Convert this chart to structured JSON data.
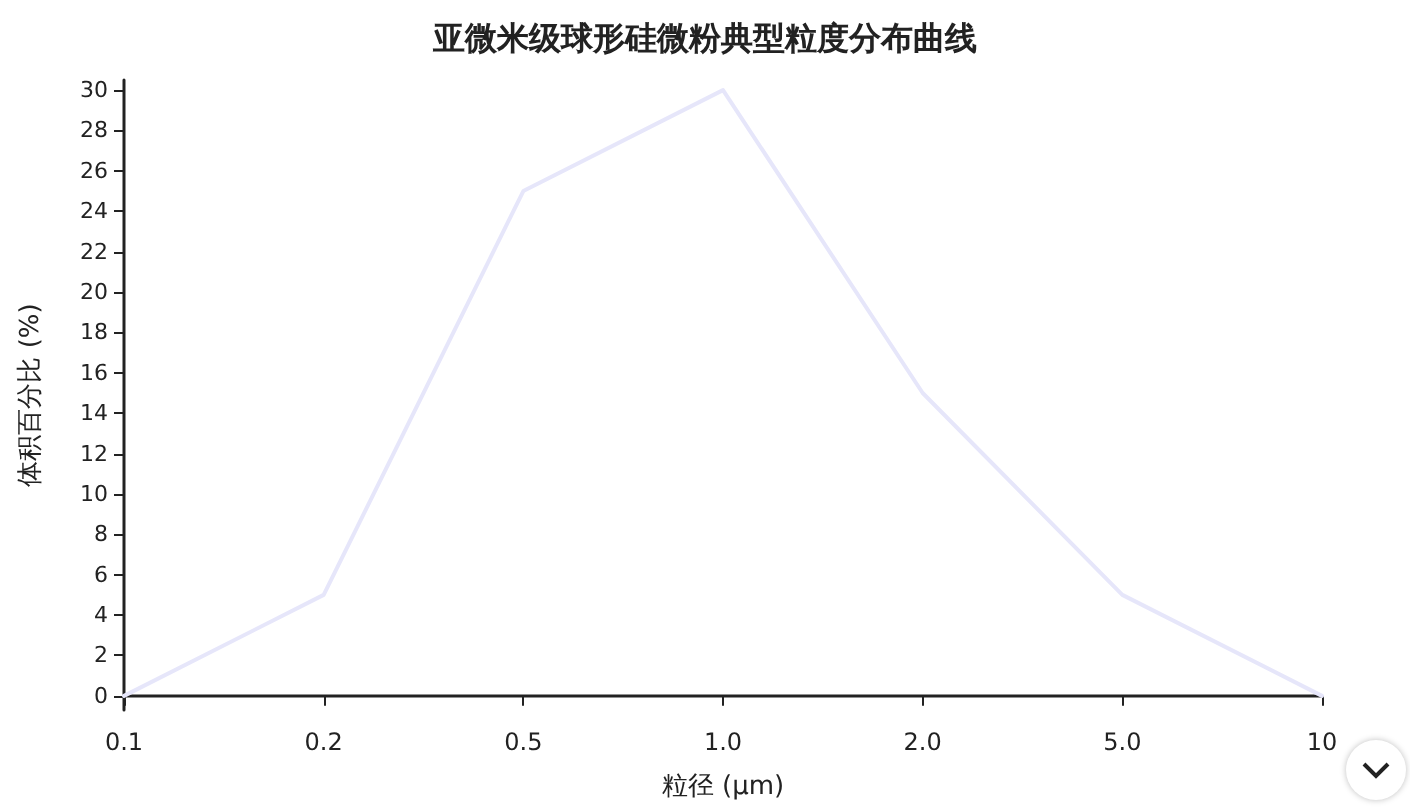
{
  "chart_data": {
    "type": "line",
    "title": "亚微米级球形硅微粉典型粒度分布曲线",
    "xlabel": "粒径 (μm)",
    "ylabel": "体积百分比 (%)",
    "categories": [
      "0.1",
      "0.2",
      "0.5",
      "1.0",
      "2.0",
      "5.0",
      "10"
    ],
    "values": [
      0,
      5,
      25,
      30,
      15,
      5,
      0
    ],
    "color": "#e6e6fa",
    "ylim": [
      -0.7,
      30.5
    ],
    "yticks": [
      0,
      2,
      4,
      6,
      8,
      10,
      12,
      14,
      16,
      18,
      20,
      22,
      24,
      26,
      28,
      30
    ],
    "grid": false,
    "marker": "none",
    "line_style": "solid"
  }
}
